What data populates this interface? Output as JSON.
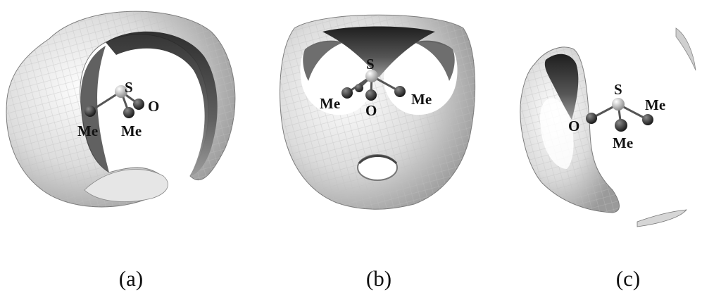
{
  "panels": [
    {
      "caption": "(a)",
      "atoms": {
        "s": "S",
        "o": "O",
        "me1": "Me",
        "me2": "Me"
      }
    },
    {
      "caption": "(b)",
      "atoms": {
        "s": "S",
        "o": "O",
        "me1": "Me",
        "me2": "Me"
      }
    },
    {
      "caption": "(c)",
      "atoms": {
        "s": "S",
        "o": "O",
        "me1": "Me",
        "me2": "Me"
      }
    }
  ],
  "colors": {
    "surface_light": "#f3f3f3",
    "surface_mid": "#bdbdbd",
    "surface_dark": "#2a2a2a",
    "atom_dark": "#3a3a3a",
    "atom_sulfur": "#d8d8d8"
  }
}
